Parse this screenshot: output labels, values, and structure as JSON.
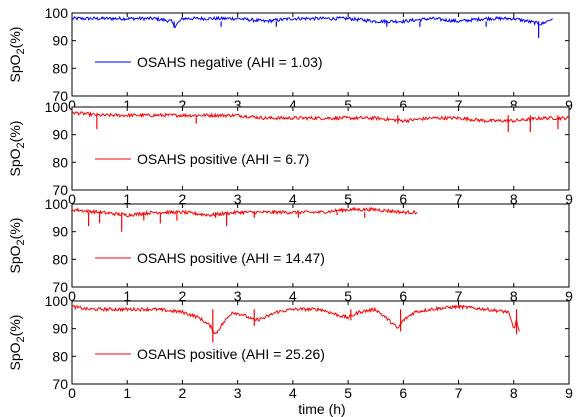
{
  "chart_data": [
    {
      "type": "line",
      "ylabel_main": "SpO",
      "ylabel_sub": "2",
      "ylabel_suffix": "(%)",
      "xlabel": "",
      "xlim": [
        0,
        9
      ],
      "ylim": [
        70,
        100
      ],
      "xticks": [
        "0",
        "1",
        "2",
        "3",
        "4",
        "5",
        "6",
        "7",
        "8",
        "9"
      ],
      "yticks": [
        "100",
        "90",
        "80",
        "70"
      ],
      "grid": false,
      "legend_position": "lower-left",
      "series": [
        {
          "name": "OSAHS negative (AHI = 1.03)",
          "color": "#0000ff",
          "x": [
            0,
            0.5,
            1,
            1.5,
            1.8,
            1.85,
            2,
            2.5,
            3,
            3.5,
            4,
            4.5,
            5,
            5.5,
            6,
            6.5,
            7,
            7.5,
            8,
            8.5,
            8.7
          ],
          "y": [
            98,
            98,
            98,
            98,
            97,
            95,
            98,
            98,
            98,
            97,
            98,
            98,
            98,
            97,
            97,
            98,
            97,
            98,
            98,
            96,
            98
          ],
          "spikes": [
            [
              1.85,
              95
            ],
            [
              2.7,
              95
            ],
            [
              3.7,
              95
            ],
            [
              5.7,
              95
            ],
            [
              6.3,
              95
            ],
            [
              7.5,
              95
            ],
            [
              8.45,
              91
            ]
          ]
        }
      ]
    },
    {
      "type": "line",
      "ylabel_main": "SpO",
      "ylabel_sub": "2",
      "ylabel_suffix": "(%)",
      "xlabel": "",
      "xlim": [
        0,
        9
      ],
      "ylim": [
        70,
        100
      ],
      "xticks": [
        "0",
        "1",
        "2",
        "3",
        "4",
        "5",
        "6",
        "7",
        "8",
        "9"
      ],
      "yticks": [
        "100",
        "90",
        "80",
        "70"
      ],
      "grid": false,
      "legend_position": "lower-left",
      "series": [
        {
          "name": "OSAHS positive (AHI = 6.7)",
          "color": "#ff0000",
          "x": [
            0,
            0.5,
            1,
            1.5,
            2,
            2.5,
            3,
            3.5,
            4,
            4.5,
            5,
            5.5,
            6,
            6.5,
            7,
            7.5,
            8,
            8.5,
            9
          ],
          "y": [
            98,
            97,
            97,
            97,
            97,
            97,
            97,
            96,
            96,
            96,
            96,
            96,
            95,
            96,
            96,
            95,
            95,
            96,
            96
          ],
          "spikes": [
            [
              0.45,
              92
            ],
            [
              2.25,
              94
            ],
            [
              5.9,
              94
            ],
            [
              7.9,
              91
            ],
            [
              8.3,
              91
            ],
            [
              8.8,
              92
            ]
          ]
        }
      ]
    },
    {
      "type": "line",
      "ylabel_main": "SpO",
      "ylabel_sub": "2",
      "ylabel_suffix": "(%)",
      "xlabel": "",
      "xlim": [
        0,
        9
      ],
      "ylim": [
        70,
        100
      ],
      "xticks": [
        "0",
        "1",
        "2",
        "3",
        "4",
        "5",
        "6",
        "7",
        "8",
        "9"
      ],
      "yticks": [
        "100",
        "90",
        "80",
        "70"
      ],
      "grid": false,
      "legend_position": "lower-left",
      "series": [
        {
          "name": "OSAHS positive (AHI = 14.47)",
          "color": "#ff0000",
          "x": [
            0,
            0.5,
            1,
            1.5,
            2,
            2.5,
            3,
            3.5,
            4,
            4.5,
            5,
            5.5,
            6,
            6.25
          ],
          "y": [
            98,
            97,
            96,
            97,
            97,
            96,
            97,
            97,
            97,
            97,
            98,
            98,
            97,
            97
          ],
          "spikes": [
            [
              0.3,
              92
            ],
            [
              0.5,
              93
            ],
            [
              0.9,
              90
            ],
            [
              1.3,
              94
            ],
            [
              1.6,
              93
            ],
            [
              1.9,
              94
            ],
            [
              2.6,
              95
            ],
            [
              2.8,
              92
            ],
            [
              3.3,
              95
            ],
            [
              4.1,
              95
            ],
            [
              4.8,
              96
            ],
            [
              5.3,
              95
            ]
          ]
        }
      ]
    },
    {
      "type": "line",
      "ylabel_main": "SpO",
      "ylabel_sub": "2",
      "ylabel_suffix": "(%)",
      "xlabel": "time (h)",
      "xlim": [
        0,
        9
      ],
      "ylim": [
        70,
        100
      ],
      "xticks": [
        "0",
        "1",
        "2",
        "3",
        "4",
        "5",
        "6",
        "7",
        "8",
        "9"
      ],
      "yticks": [
        "100",
        "90",
        "80",
        "70"
      ],
      "grid": false,
      "legend_position": "lower-left",
      "series": [
        {
          "name": "OSAHS positive (AHI = 25.26)",
          "color": "#ff0000",
          "x": [
            0,
            0.3,
            0.5,
            1,
            1.5,
            2,
            2.3,
            2.5,
            2.6,
            2.7,
            2.9,
            3.1,
            3.3,
            3.5,
            3.7,
            4,
            4.5,
            4.8,
            5,
            5.2,
            5.5,
            5.8,
            5.9,
            6,
            6.2,
            6.5,
            7,
            7.5,
            7.9,
            8,
            8.05,
            8.1
          ],
          "y": [
            98,
            97,
            97,
            97,
            97,
            96,
            94,
            91,
            88,
            91,
            96,
            95,
            93,
            94,
            96,
            97,
            97,
            95,
            94,
            96,
            97,
            92,
            90,
            93,
            96,
            97,
            98,
            97,
            96,
            90,
            93,
            89
          ],
          "spikes": [
            [
              2.55,
              85
            ],
            [
              3.3,
              91
            ],
            [
              5.05,
              93
            ],
            [
              5.95,
              89
            ],
            [
              8.05,
              88
            ]
          ]
        }
      ]
    }
  ]
}
